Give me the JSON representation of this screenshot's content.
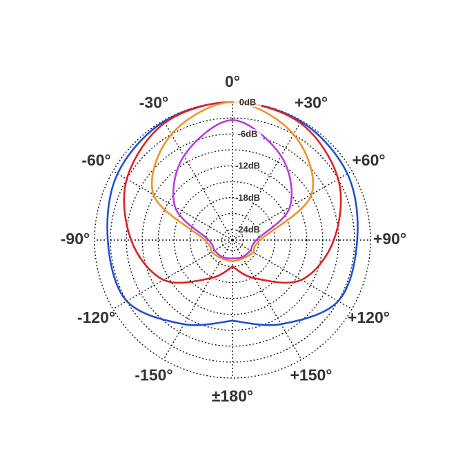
{
  "chart_data": {
    "type": "polar",
    "theta": [
      -180,
      -150,
      -120,
      -90,
      -60,
      -30,
      0,
      30,
      60,
      90,
      120,
      150,
      180
    ],
    "series": [
      {
        "color": "#1f4fd8",
        "values": [
          -10.8,
          -7.7,
          -3,
          -2.5,
          -1,
          -0.2,
          0,
          -0.2,
          -1,
          -2.5,
          -3,
          -7.7,
          -10.8
        ]
      },
      {
        "color": "#e0201e",
        "values": [
          -21,
          -17.7,
          -11,
          -6.9,
          -3,
          -0.5,
          0,
          -0.5,
          -3,
          -6.9,
          -11,
          -17.7,
          -21
        ]
      },
      {
        "color": "#f0922a",
        "values": [
          -22,
          -22,
          -21.5,
          -20.8,
          -8.8,
          -3,
          0,
          -3,
          -8.8,
          -20.8,
          -21.5,
          -22,
          -22
        ]
      },
      {
        "color": "#b93be0",
        "values": [
          -22.5,
          -22.3,
          -22.1,
          -21.5,
          -13.5,
          -7.7,
          -3.4,
          -7.7,
          -13.5,
          -21.5,
          -22.1,
          -22.3,
          -22.5
        ]
      }
    ],
    "rlim": [
      -26,
      0
    ],
    "rticks": [
      {
        "value": 0,
        "label": "0dB"
      },
      {
        "value": -6,
        "label": "-6dB"
      },
      {
        "value": -12,
        "label": "-12dB"
      },
      {
        "value": -18,
        "label": "-18dB"
      },
      {
        "value": -24,
        "label": "-24dB"
      }
    ],
    "rminor": [
      -3,
      -9,
      -15,
      -21
    ],
    "thetaticks": [
      {
        "value": 0,
        "label": "0°"
      },
      {
        "value": 30,
        "label": "+30°"
      },
      {
        "value": 60,
        "label": "+60°"
      },
      {
        "value": 90,
        "label": "+90°"
      },
      {
        "value": 120,
        "label": "+120°"
      },
      {
        "value": 150,
        "label": "+150°"
      },
      {
        "value": 180,
        "label": "±180°"
      },
      {
        "value": -150,
        "label": "-150°"
      },
      {
        "value": -120,
        "label": "-120°"
      },
      {
        "value": -90,
        "label": "-90°"
      },
      {
        "value": -60,
        "label": "-60°"
      },
      {
        "value": -30,
        "label": "-30°"
      }
    ]
  }
}
